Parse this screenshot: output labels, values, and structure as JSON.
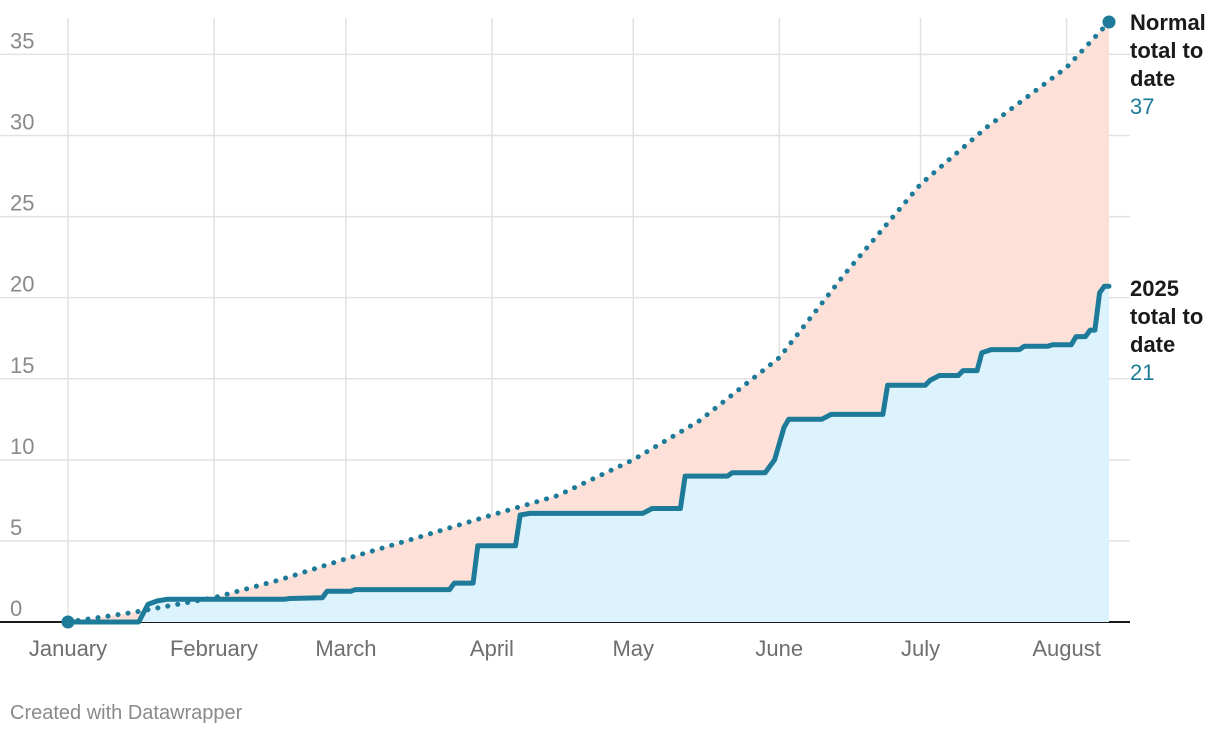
{
  "credit": "Created with Datawrapper",
  "colors": {
    "line": "#1d7b99",
    "area_normal": "#fde1d8",
    "area_actual": "#dcf2fc",
    "grid": "#e2e2e2",
    "baseline": "#1a1a1a"
  },
  "chart_data": {
    "type": "line",
    "title": "",
    "xlabel": "",
    "ylabel": "",
    "ylim": [
      0,
      37
    ],
    "yticks": [
      0,
      5,
      10,
      15,
      20,
      25,
      30,
      35
    ],
    "xlim": [
      "2025-01-01",
      "2025-08-10"
    ],
    "xticks": [
      {
        "date": "2025-01-01",
        "label": "January"
      },
      {
        "date": "2025-02-01",
        "label": "February"
      },
      {
        "date": "2025-03-01",
        "label": "March"
      },
      {
        "date": "2025-04-01",
        "label": "April"
      },
      {
        "date": "2025-05-01",
        "label": "May"
      },
      {
        "date": "2025-06-01",
        "label": "June"
      },
      {
        "date": "2025-07-01",
        "label": "July"
      },
      {
        "date": "2025-08-01",
        "label": "August"
      }
    ],
    "grid": true,
    "series": [
      {
        "name": "Normal total to date",
        "style": "dotted",
        "end_label_lines": [
          "Normal",
          "total to",
          "date"
        ],
        "end_value": "37",
        "points": [
          [
            "2025-01-01",
            0
          ],
          [
            "2025-01-15",
            0.6
          ],
          [
            "2025-02-01",
            1.5
          ],
          [
            "2025-02-15",
            2.6
          ],
          [
            "2025-03-01",
            3.9
          ],
          [
            "2025-03-15",
            5.1
          ],
          [
            "2025-04-01",
            6.6
          ],
          [
            "2025-04-15",
            7.8
          ],
          [
            "2025-05-01",
            10.0
          ],
          [
            "2025-05-15",
            12.4
          ],
          [
            "2025-06-01",
            16.3
          ],
          [
            "2025-06-15",
            21.5
          ],
          [
            "2025-07-01",
            27.0
          ],
          [
            "2025-07-15",
            30.5
          ],
          [
            "2025-08-01",
            34.2
          ],
          [
            "2025-08-10",
            37.0
          ]
        ]
      },
      {
        "name": "2025 total to date",
        "style": "solid",
        "end_label_lines": [
          "2025",
          "total to",
          "date"
        ],
        "end_value": "21",
        "points": [
          [
            "2025-01-01",
            0
          ],
          [
            "2025-01-16",
            0
          ],
          [
            "2025-01-18",
            1.1
          ],
          [
            "2025-01-20",
            1.3
          ],
          [
            "2025-01-22",
            1.4
          ],
          [
            "2025-02-16",
            1.4
          ],
          [
            "2025-02-17",
            1.45
          ],
          [
            "2025-02-24",
            1.5
          ],
          [
            "2025-02-25",
            1.9
          ],
          [
            "2025-03-02",
            1.9
          ],
          [
            "2025-03-03",
            2.0
          ],
          [
            "2025-03-23",
            2.0
          ],
          [
            "2025-03-24",
            2.4
          ],
          [
            "2025-03-28",
            2.4
          ],
          [
            "2025-03-29",
            4.7
          ],
          [
            "2025-04-06",
            4.7
          ],
          [
            "2025-04-07",
            6.6
          ],
          [
            "2025-04-09",
            6.7
          ],
          [
            "2025-05-03",
            6.7
          ],
          [
            "2025-05-05",
            7.0
          ],
          [
            "2025-05-11",
            7.0
          ],
          [
            "2025-05-12",
            9.0
          ],
          [
            "2025-05-21",
            9.0
          ],
          [
            "2025-05-22",
            9.2
          ],
          [
            "2025-05-29",
            9.2
          ],
          [
            "2025-05-31",
            10.0
          ],
          [
            "2025-06-02",
            12.0
          ],
          [
            "2025-06-03",
            12.5
          ],
          [
            "2025-06-10",
            12.5
          ],
          [
            "2025-06-12",
            12.8
          ],
          [
            "2025-06-23",
            12.8
          ],
          [
            "2025-06-24",
            14.6
          ],
          [
            "2025-07-02",
            14.6
          ],
          [
            "2025-07-03",
            14.9
          ],
          [
            "2025-07-05",
            15.2
          ],
          [
            "2025-07-09",
            15.2
          ],
          [
            "2025-07-10",
            15.5
          ],
          [
            "2025-07-13",
            15.5
          ],
          [
            "2025-07-14",
            16.6
          ],
          [
            "2025-07-16",
            16.8
          ],
          [
            "2025-07-22",
            16.8
          ],
          [
            "2025-07-23",
            17.0
          ],
          [
            "2025-07-28",
            17.0
          ],
          [
            "2025-07-29",
            17.1
          ],
          [
            "2025-08-02",
            17.1
          ],
          [
            "2025-08-03",
            17.6
          ],
          [
            "2025-08-05",
            17.6
          ],
          [
            "2025-08-06",
            18.0
          ],
          [
            "2025-08-07",
            18.0
          ],
          [
            "2025-08-08",
            20.3
          ],
          [
            "2025-08-09",
            20.7
          ],
          [
            "2025-08-10",
            20.7
          ]
        ]
      }
    ]
  }
}
